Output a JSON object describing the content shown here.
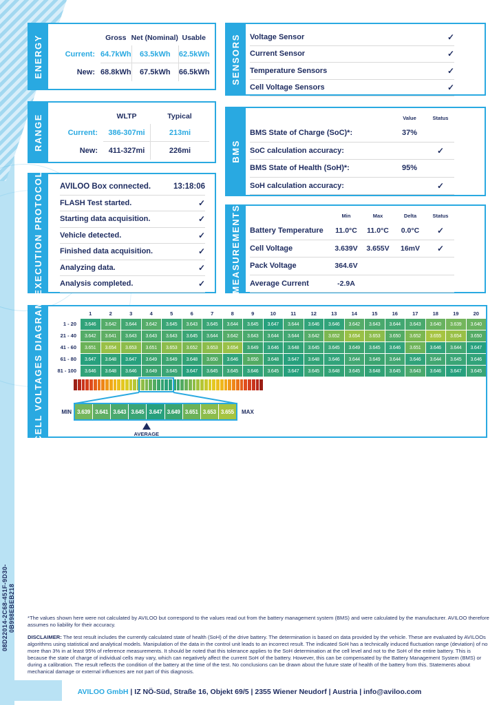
{
  "colors": {
    "accent": "#29a9e1",
    "navy": "#1d2b5f",
    "stripe": "#b9e2f4",
    "separator": "#d9d9d9"
  },
  "icons": {
    "check": "✓"
  },
  "serial": "08D22014-2C68-451F-9D30-0B998EBEB218",
  "energy": {
    "tab": "ENERGY",
    "headers": [
      "Gross",
      "Net (Nominal)",
      "Usable"
    ],
    "rows": [
      {
        "label": "Current:",
        "values": [
          "64.7kWh",
          "63.5kWh",
          "62.5kWh"
        ]
      },
      {
        "label": "New:",
        "values": [
          "68.8kWh",
          "67.5kWh",
          "66.5kWh"
        ]
      }
    ]
  },
  "range": {
    "tab": "RANGE",
    "headers": [
      "WLTP",
      "Typical"
    ],
    "rows": [
      {
        "label": "Current:",
        "values": [
          "386-307mi",
          "213mi"
        ]
      },
      {
        "label": "New:",
        "values": [
          "411-327mi",
          "226mi"
        ]
      }
    ]
  },
  "execution_protocol": {
    "tab": "EXECUTION PROTOCOL",
    "rows": [
      {
        "label": "AVILOO Box connected.",
        "value": "13:18:06"
      },
      {
        "label": "FLASH Test started."
      },
      {
        "label": "Starting data acquisition."
      },
      {
        "label": "Vehicle detected."
      },
      {
        "label": "Finished data acquisition."
      },
      {
        "label": "Analyzing data."
      },
      {
        "label": "Analysis completed."
      }
    ]
  },
  "sensors": {
    "tab": "SENSORS",
    "rows": [
      {
        "label": "Voltage Sensor"
      },
      {
        "label": "Current Sensor"
      },
      {
        "label": "Temperature Sensors"
      },
      {
        "label": "Cell Voltage Sensors"
      }
    ]
  },
  "bms": {
    "tab": "BMS",
    "headers": {
      "value": "Value",
      "status": "Status"
    },
    "rows": [
      {
        "label": "BMS State of Charge (SoC)*:",
        "value": "37%"
      },
      {
        "label": "SoC calculation accuracy:",
        "value": ""
      },
      {
        "label": "BMS State of Health (SoH)*:",
        "value": "95%"
      },
      {
        "label": "SoH calculation accuracy:",
        "value": ""
      }
    ]
  },
  "measurements": {
    "tab": "MEASUREMENTS",
    "headers": {
      "min": "Min",
      "max": "Max",
      "delta": "Delta",
      "status": "Status"
    },
    "rows": [
      {
        "label": "Battery Temperature",
        "min": "11.0°C",
        "max": "11.0°C",
        "delta": "0.0°C"
      },
      {
        "label": "Cell Voltage",
        "min": "3.639V",
        "max": "3.655V",
        "delta": "16mV"
      },
      {
        "label": "Pack Voltage",
        "min": "364.6V",
        "max": "",
        "delta": ""
      },
      {
        "label": "Average Current",
        "min": "-2.9A",
        "max": "",
        "delta": ""
      }
    ]
  },
  "chart_data": {
    "type": "heatmap",
    "title": "CELL VOLTAGES DIAGRAM",
    "unit": "V",
    "col_labels": [
      "1",
      "2",
      "3",
      "4",
      "5",
      "6",
      "7",
      "8",
      "9",
      "10",
      "11",
      "12",
      "13",
      "14",
      "15",
      "16",
      "17",
      "18",
      "19",
      "20"
    ],
    "row_labels": [
      "1 - 20",
      "21 - 40",
      "41 - 60",
      "61 - 80",
      "81 - 100"
    ],
    "values": [
      [
        3.646,
        3.642,
        3.644,
        3.642,
        3.645,
        3.643,
        3.645,
        3.644,
        3.645,
        3.647,
        3.644,
        3.646,
        3.646,
        3.642,
        3.643,
        3.644,
        3.643,
        3.64,
        3.639,
        3.64
      ],
      [
        3.642,
        3.641,
        3.643,
        3.643,
        3.643,
        3.645,
        3.644,
        3.642,
        3.643,
        3.644,
        3.644,
        3.642,
        3.652,
        3.654,
        3.653,
        3.65,
        3.652,
        3.655,
        3.654,
        3.65
      ],
      [
        3.651,
        3.654,
        3.653,
        3.651,
        3.653,
        3.652,
        3.653,
        3.654,
        3.649,
        3.646,
        3.648,
        3.645,
        3.645,
        3.649,
        3.645,
        3.646,
        3.651,
        3.646,
        3.644,
        3.647
      ],
      [
        3.647,
        3.648,
        3.647,
        3.649,
        3.649,
        3.648,
        3.65,
        3.646,
        3.65,
        3.648,
        3.647,
        3.648,
        3.646,
        3.644,
        3.649,
        3.644,
        3.646,
        3.644,
        3.645,
        3.646
      ],
      [
        3.646,
        3.648,
        3.646,
        3.649,
        3.645,
        3.647,
        3.645,
        3.645,
        3.646,
        3.645,
        3.647,
        3.645,
        3.648,
        3.645,
        3.648,
        3.645,
        3.643,
        3.646,
        3.647,
        3.645
      ]
    ],
    "color_stops": [
      [
        3.639,
        "#74b65c"
      ],
      [
        3.641,
        "#5fae64"
      ],
      [
        3.643,
        "#4aa96d"
      ],
      [
        3.645,
        "#3aa576"
      ],
      [
        3.647,
        "#27a07d"
      ],
      [
        3.649,
        "#3ba470"
      ],
      [
        3.651,
        "#6bb258"
      ],
      [
        3.653,
        "#8cbc4b"
      ],
      [
        3.655,
        "#a6c441"
      ]
    ],
    "gradient_bar": {
      "segments": 48,
      "edge_stops": [
        [
          0,
          "#27a07d"
        ],
        [
          0.1,
          "#3aa46b"
        ],
        [
          0.2,
          "#6fb355"
        ],
        [
          0.32,
          "#a5c43c"
        ],
        [
          0.45,
          "#e0cd22"
        ],
        [
          0.58,
          "#f2b31c"
        ],
        [
          0.7,
          "#ee8118"
        ],
        [
          0.82,
          "#de4a1d"
        ],
        [
          0.92,
          "#c12c1c"
        ],
        [
          1,
          "#8e1a12"
        ]
      ]
    },
    "legend": {
      "min_label": "MIN",
      "max_label": "MAX",
      "average_label": "AVERAGE",
      "values": [
        3.639,
        3.641,
        3.643,
        3.645,
        3.647,
        3.649,
        3.651,
        3.653,
        3.655
      ],
      "average_value": 3.646,
      "scale_range": [
        3.638,
        3.656
      ]
    }
  },
  "footnote": "*The values shown here were not calculated by AVILOO but correspond to the values read out from the battery management system (BMS) and were calculated by the manufacturer. AVILOO therefore assumes no liability for their accuracy.",
  "disclaimer_label": "DISCLAIMER:",
  "disclaimer": " The test result includes the currently calculated state of health (SoH) of the drive battery. The determination is based on data provided by the vehicle. These are evaluated by AVILOOs algorithms using statistical and analytical models. Manipulation of the data in the control unit leads to an incorrect result. The indicated SoH has a technically induced fluctuation range (deviation) of no more than 3% in at least 95% of reference measurements. It should be noted that this tolerance applies to the SoH determination at the cell level and not to the SoH of the entire battery. This is because the state of charge of individual cells may vary, which can negatively affect the current SoH of the battery. However, this can be compensated by the Battery Management System (BMS) or during a calibration. The result reflects the condition of the battery at the time of the test. No conclusions can be drawn about the future state of health of the battery from this. Statements about mechanical damage or external influences are not part of this diagnosis.",
  "footer": {
    "brand": "AVILOO GmbH",
    "rest": " | IZ NÖ-Süd, Straße 16, Objekt 69/5 | 2355 Wiener Neudorf | Austria | info@aviloo.com"
  }
}
